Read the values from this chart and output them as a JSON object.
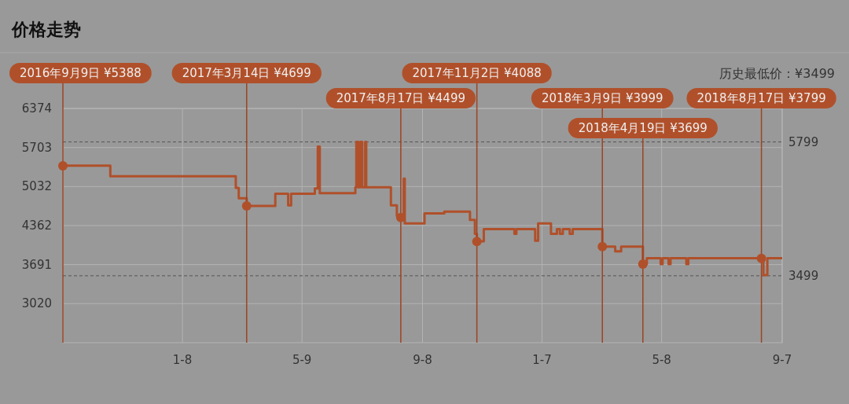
{
  "chart_data": {
    "type": "step",
    "title": "价格走势",
    "xlim": [
      "2016-09-09",
      "2018-09-07"
    ],
    "xticks": [
      {
        "value": "2017-01-08",
        "label": "1-8"
      },
      {
        "value": "2017-05-09",
        "label": "5-9"
      },
      {
        "value": "2017-09-08",
        "label": "9-8"
      },
      {
        "value": "2018-01-07",
        "label": "1-7"
      },
      {
        "value": "2018-05-08",
        "label": "5-8"
      },
      {
        "value": "2018-09-07",
        "label": "9-7"
      }
    ],
    "ylim": [
      2349,
      6374
    ],
    "yticks": [
      3020,
      3691,
      4362,
      5032,
      5703,
      6374
    ],
    "grid": true,
    "x": [
      "2016-09-09",
      "2016-10-27",
      "2017-03-03",
      "2017-03-06",
      "2017-03-14",
      "2017-04-12",
      "2017-04-25",
      "2017-04-28",
      "2017-05-22",
      "2017-05-25",
      "2017-05-27",
      "2017-07-02",
      "2017-07-03",
      "2017-07-05",
      "2017-07-07",
      "2017-07-09",
      "2017-07-12",
      "2017-07-13",
      "2017-08-07",
      "2017-08-13",
      "2017-08-17",
      "2017-08-20",
      "2017-08-21",
      "2017-09-10",
      "2017-09-30",
      "2017-10-26",
      "2017-10-31",
      "2017-11-02",
      "2017-11-09",
      "2017-12-10",
      "2017-12-12",
      "2017-12-31",
      "2018-01-03",
      "2018-01-16",
      "2018-01-22",
      "2018-01-25",
      "2018-01-28",
      "2018-02-04",
      "2018-02-07",
      "2018-03-09",
      "2018-03-22",
      "2018-03-28",
      "2018-04-19",
      "2018-04-23",
      "2018-05-07",
      "2018-05-09",
      "2018-05-15",
      "2018-05-17",
      "2018-06-02",
      "2018-06-04",
      "2018-08-17",
      "2018-08-19",
      "2018-08-23",
      "2018-09-07"
    ],
    "series": [
      {
        "color": "#b0502a",
        "values": [
          5390,
          5210,
          5010,
          4830,
          4700,
          4910,
          4710,
          4910,
          5000,
          5720,
          4920,
          5020,
          5800,
          5020,
          5800,
          5020,
          5800,
          5020,
          4710,
          4530,
          4500,
          5170,
          4400,
          4570,
          4600,
          4460,
          4220,
          4090,
          4300,
          4220,
          4300,
          4100,
          4400,
          4220,
          4300,
          4220,
          4300,
          4220,
          4300,
          4000,
          3920,
          4000,
          3700,
          3800,
          3700,
          3800,
          3700,
          3800,
          3700,
          3800,
          3800,
          3510,
          3800,
          3800
        ]
      }
    ],
    "ref_lines": [
      {
        "axis": "y",
        "value": 5799,
        "label": "5799",
        "line_style": "dashed"
      },
      {
        "axis": "y",
        "value": 3499,
        "label": "3499",
        "line_style": "dashed"
      }
    ],
    "annotations": [
      {
        "text": "2016年9月9日 ¥5388",
        "x": "2016-09-09",
        "y": 5388
      },
      {
        "text": "2017年3月14日 ¥4699",
        "x": "2017-03-14",
        "y": 4699
      },
      {
        "text": "2017年8月17日 ¥4499",
        "x": "2017-08-17",
        "y": 4499
      },
      {
        "text": "2017年11月2日 ¥4088",
        "x": "2017-11-02",
        "y": 4088
      },
      {
        "text": "2018年3月9日 ¥3999",
        "x": "2018-03-09",
        "y": 3999
      },
      {
        "text": "2018年4月19日 ¥3699",
        "x": "2018-04-19",
        "y": 3699
      },
      {
        "text": "2018年8月17日 ¥3799",
        "x": "2018-08-17",
        "y": 3799
      },
      "历史最低价：¥3499"
    ]
  }
}
